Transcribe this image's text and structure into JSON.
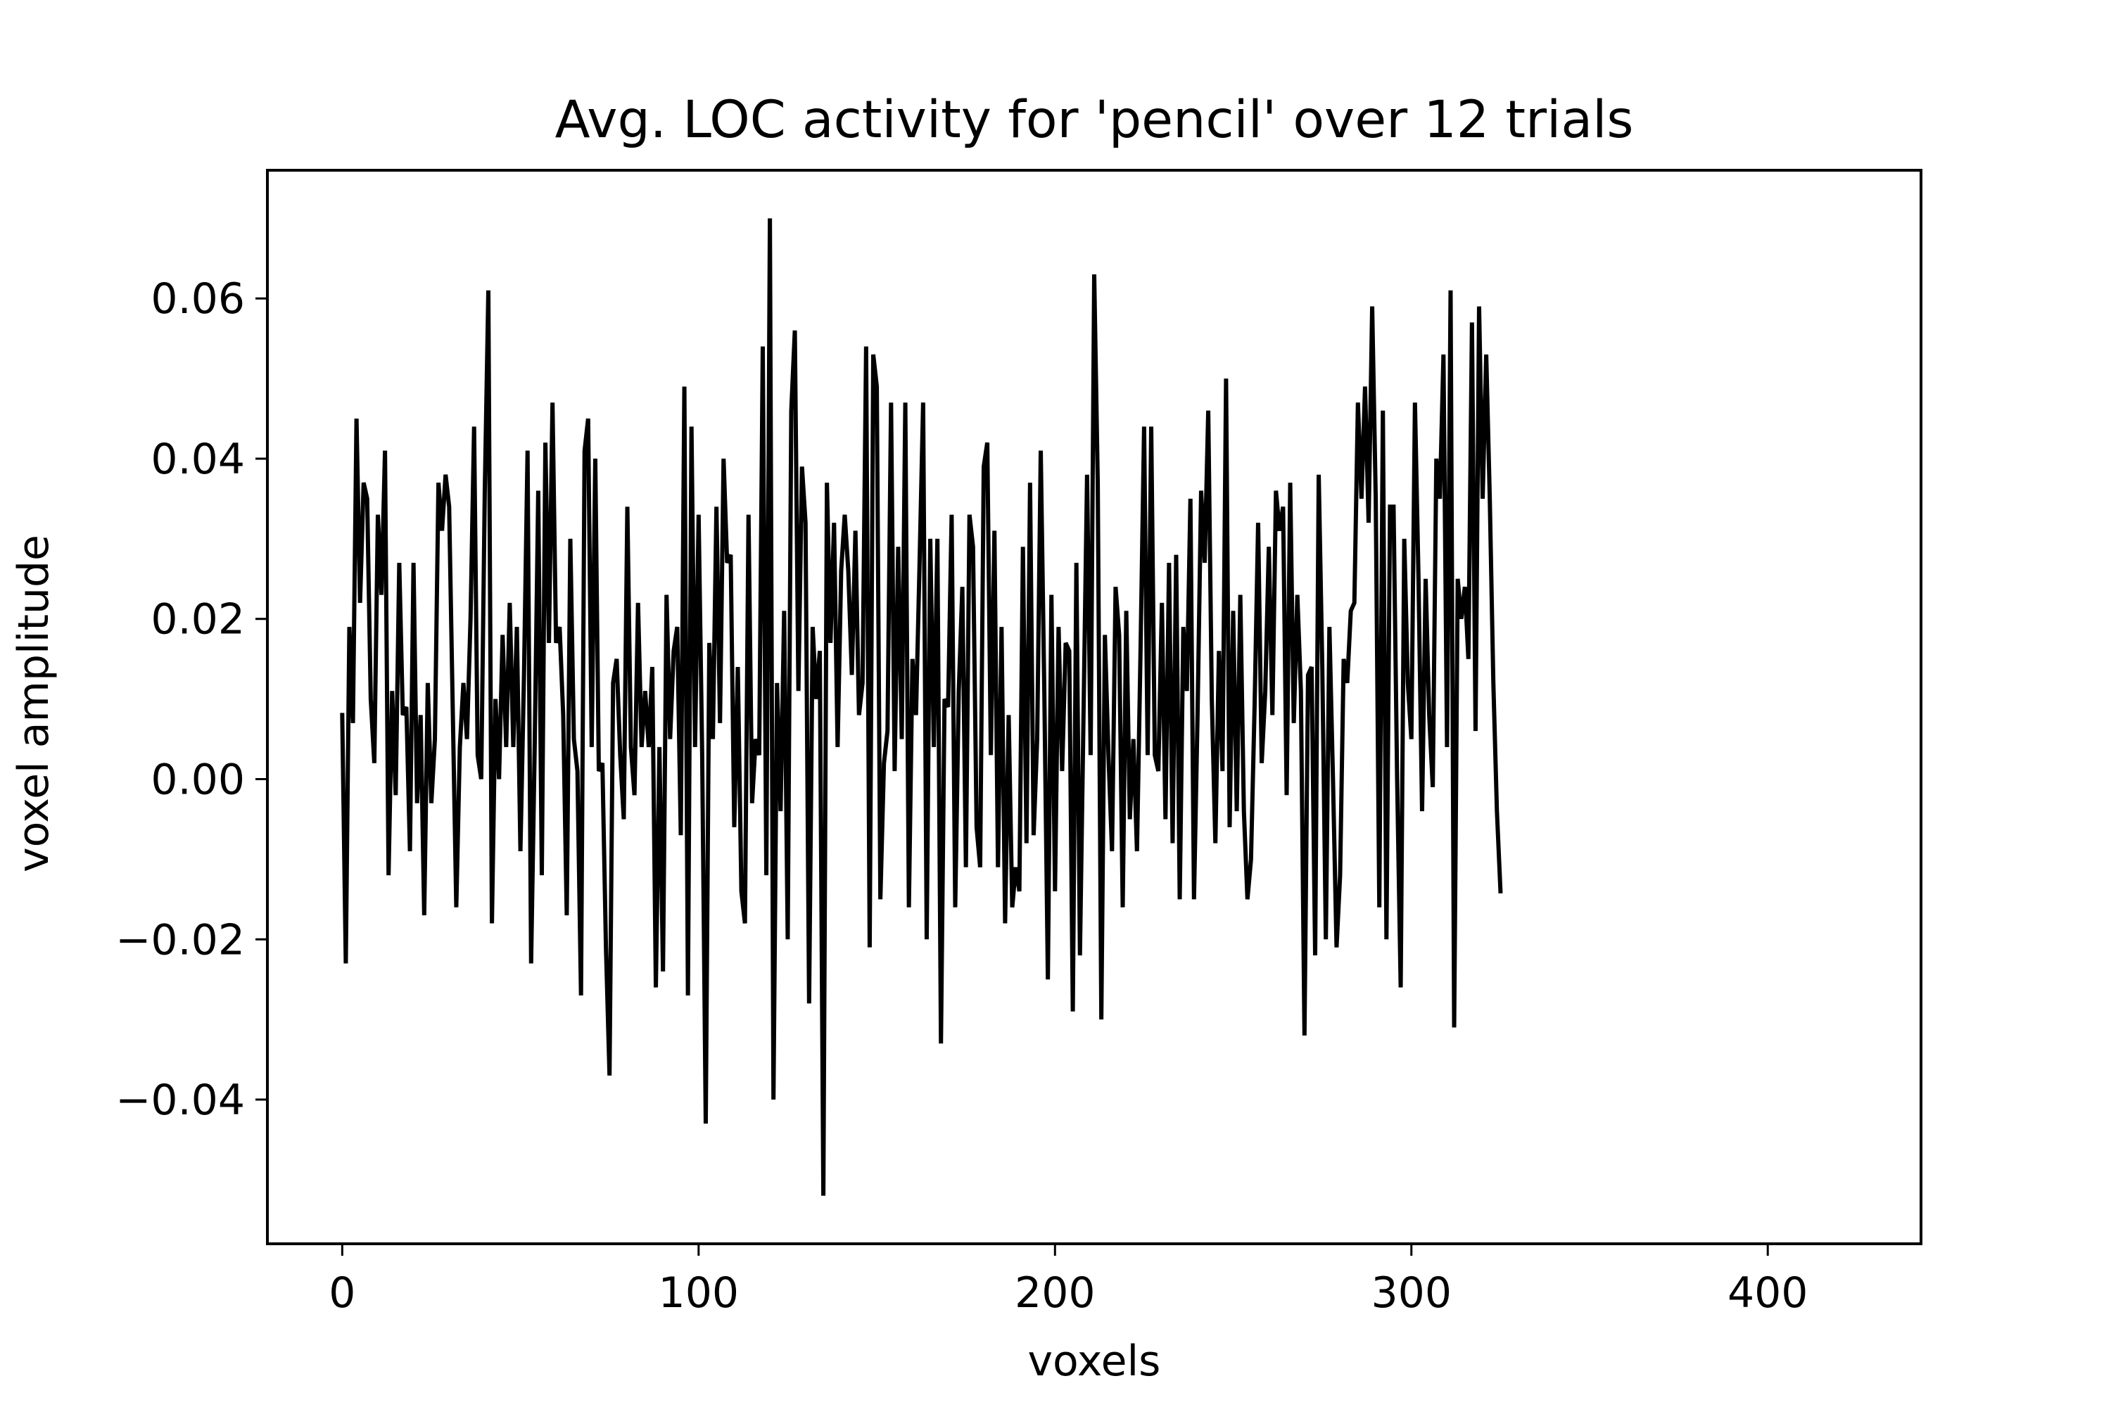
{
  "chart_data": {
    "type": "line",
    "title": "Avg. LOC activity for 'pencil' over 12 trials",
    "xlabel": "voxels",
    "ylabel": "voxel amplitude",
    "xlim": [
      -21,
      443
    ],
    "ylim": [
      -0.058,
      0.076
    ],
    "grid": false,
    "xticks": [
      {
        "value": 0,
        "label": "0"
      },
      {
        "value": 100,
        "label": "100"
      },
      {
        "value": 200,
        "label": "200"
      },
      {
        "value": 300,
        "label": "300"
      },
      {
        "value": 400,
        "label": "400"
      }
    ],
    "yticks": [
      {
        "value": -0.04,
        "label": "−0.04"
      },
      {
        "value": -0.02,
        "label": "−0.02"
      },
      {
        "value": 0.0,
        "label": "0.00"
      },
      {
        "value": 0.02,
        "label": "0.02"
      },
      {
        "value": 0.04,
        "label": "0.04"
      },
      {
        "value": 0.06,
        "label": "0.06"
      }
    ],
    "series": [
      {
        "color": "#000000",
        "x_start": 0,
        "x_step": 1,
        "y": [
          0.008,
          -0.023,
          0.019,
          0.007,
          0.045,
          0.022,
          0.037,
          0.035,
          0.01,
          0.002,
          0.033,
          0.023,
          0.041,
          -0.012,
          0.011,
          -0.002,
          0.027,
          0.008,
          0.009,
          -0.009,
          0.027,
          -0.003,
          0.008,
          -0.017,
          0.012,
          -0.003,
          0.005,
          0.037,
          0.031,
          0.038,
          0.034,
          0.009,
          -0.016,
          0.004,
          0.012,
          0.005,
          0.02,
          0.044,
          0.003,
          0.0,
          0.036,
          0.061,
          -0.018,
          0.01,
          0.0,
          0.018,
          0.004,
          0.022,
          0.004,
          0.019,
          -0.009,
          0.013,
          0.041,
          -0.023,
          0.004,
          0.036,
          -0.012,
          0.042,
          0.017,
          0.047,
          0.017,
          0.019,
          0.008,
          -0.017,
          0.03,
          0.005,
          0.001,
          -0.027,
          0.041,
          0.045,
          0.004,
          0.04,
          0.001,
          0.002,
          -0.021,
          -0.037,
          0.012,
          0.015,
          0.003,
          -0.005,
          0.034,
          0.004,
          -0.002,
          0.022,
          0.004,
          0.011,
          0.004,
          0.014,
          -0.026,
          0.004,
          -0.024,
          0.023,
          0.005,
          0.016,
          0.019,
          -0.007,
          0.049,
          -0.027,
          0.044,
          0.004,
          0.033,
          0.003,
          -0.043,
          0.017,
          0.005,
          0.034,
          0.007,
          0.04,
          0.027,
          0.028,
          -0.006,
          0.014,
          -0.014,
          -0.018,
          0.033,
          -0.003,
          0.005,
          0.003,
          0.054,
          -0.012,
          0.07,
          -0.04,
          0.012,
          -0.004,
          0.021,
          -0.02,
          0.046,
          0.056,
          0.011,
          0.039,
          0.032,
          -0.028,
          0.019,
          0.01,
          0.016,
          -0.052,
          0.037,
          0.017,
          0.032,
          0.004,
          0.026,
          0.033,
          0.026,
          0.013,
          0.031,
          0.008,
          0.012,
          0.054,
          -0.021,
          0.053,
          0.049,
          -0.015,
          0.002,
          0.006,
          0.047,
          0.001,
          0.029,
          0.005,
          0.047,
          -0.016,
          0.015,
          0.008,
          0.027,
          0.047,
          -0.02,
          0.03,
          0.004,
          0.03,
          -0.033,
          0.01,
          0.009,
          0.033,
          -0.016,
          0.011,
          0.024,
          -0.011,
          0.033,
          0.029,
          -0.006,
          -0.011,
          0.039,
          0.042,
          0.003,
          0.031,
          -0.011,
          0.019,
          -0.018,
          0.008,
          -0.016,
          -0.011,
          -0.014,
          0.029,
          -0.008,
          0.037,
          -0.007,
          0.005,
          0.041,
          0.011,
          -0.025,
          0.023,
          -0.014,
          0.019,
          0.001,
          0.017,
          0.016,
          -0.029,
          0.027,
          -0.022,
          0.008,
          0.038,
          0.003,
          0.063,
          0.037,
          -0.03,
          0.018,
          0.003,
          -0.009,
          0.024,
          0.018,
          -0.016,
          0.021,
          -0.005,
          0.005,
          -0.009,
          0.016,
          0.044,
          0.003,
          0.044,
          0.003,
          0.001,
          0.022,
          -0.005,
          0.027,
          -0.008,
          0.028,
          -0.015,
          0.019,
          0.011,
          0.035,
          -0.015,
          0.008,
          0.036,
          0.027,
          0.046,
          0.01,
          -0.008,
          0.016,
          0.001,
          0.05,
          -0.006,
          0.021,
          -0.004,
          0.023,
          -0.004,
          -0.015,
          -0.01,
          0.009,
          0.032,
          0.002,
          0.011,
          0.029,
          0.008,
          0.036,
          0.031,
          0.034,
          -0.002,
          0.037,
          0.007,
          0.023,
          0.011,
          -0.032,
          0.013,
          0.014,
          -0.022,
          0.038,
          0.014,
          -0.02,
          0.019,
          0.0,
          -0.021,
          -0.012,
          0.015,
          0.012,
          0.021,
          0.022,
          0.047,
          0.035,
          0.049,
          0.032,
          0.059,
          0.035,
          -0.016,
          0.046,
          -0.02,
          0.034,
          0.034,
          0.0,
          -0.026,
          0.03,
          0.012,
          0.005,
          0.047,
          0.025,
          -0.004,
          0.025,
          0.008,
          -0.001,
          0.04,
          0.035,
          0.053,
          0.004,
          0.061,
          -0.031,
          0.025,
          0.02,
          0.024,
          0.015,
          0.057,
          0.006,
          0.059,
          0.035,
          0.053,
          0.035,
          0.012,
          -0.004,
          -0.014
        ]
      }
    ]
  }
}
